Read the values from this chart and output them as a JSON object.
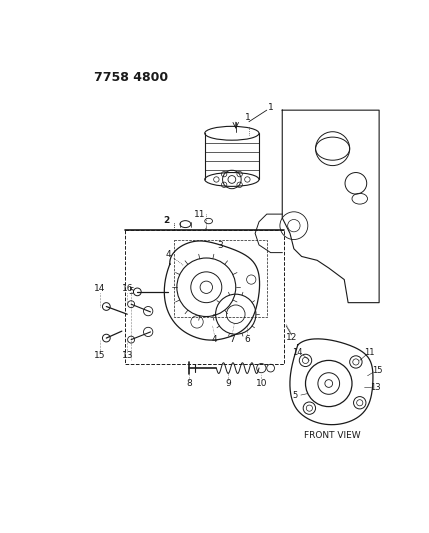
{
  "title": "7758 4800",
  "bg": "#ffffff",
  "lc": "#1a1a1a",
  "fig_w": 4.29,
  "fig_h": 5.33,
  "dpi": 100
}
